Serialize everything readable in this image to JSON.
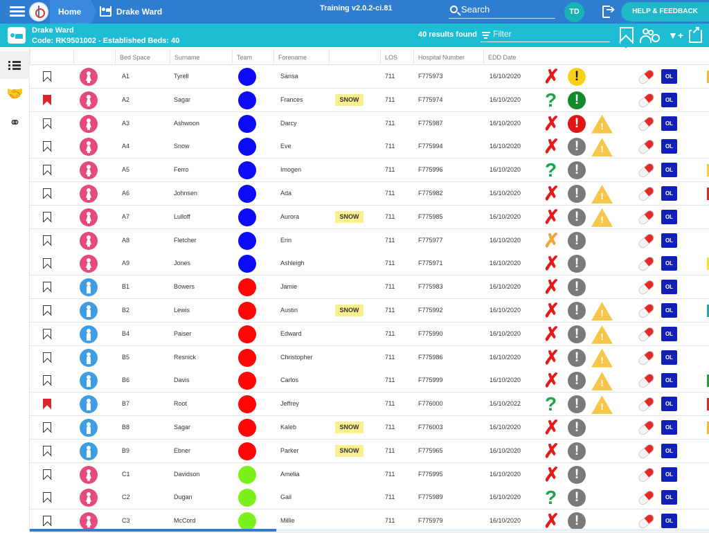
{
  "topbar": {
    "home_label": "Home",
    "ward_label": "Drake Ward",
    "version": "Training v2.0.2-ci.81",
    "search_placeholder": "Search",
    "user_initials": "TD",
    "help_label": "HELP & FEEDBACK",
    "colors": {
      "bar": "#2e7dd1",
      "help": "#1eb8c6",
      "avatar": "#18b3b6"
    }
  },
  "ward": {
    "name": "Drake Ward",
    "code_line": "Code: RK9501002 - Established Beds: 40",
    "results": "40 results found",
    "filter_placeholder": "Filter",
    "color": "#1ebdd3"
  },
  "sidenav": {
    "items": [
      {
        "icon": "list-icon",
        "active": true
      },
      {
        "icon": "handshake-icon",
        "active": false
      },
      {
        "icon": "stethoscope-icon",
        "active": false
      }
    ]
  },
  "columns": [
    "Bed Space",
    "Surname",
    "Team",
    "Forename",
    "LOS",
    "Hospital Number",
    "EDD Date"
  ],
  "icon_colors": {
    "female": "#e5497d",
    "male": "#3f9ee3",
    "team_blue": "#0b0bf5",
    "team_red": "#ff0606",
    "team_green": "#7bf01c",
    "cross_red": "#e31b1b",
    "cross_orange": "#f2a33a",
    "question_green": "#1aa54c",
    "alert_yellow": "#f8d21a",
    "alert_green": "#138a2c",
    "alert_red": "#e11515",
    "alert_grey": "#7a7a7a",
    "warning": "#f5c64a",
    "ol_blue": "#1020b8"
  },
  "ol_label": "OL",
  "rows": [
    {
      "bookmarked": false,
      "gender": "female",
      "bed": "A1",
      "surname": "Tyrell",
      "team": "blue",
      "forename": "Sansa",
      "tag": "",
      "los": "711",
      "hosp": "F775973",
      "edd": "16/10/2020",
      "status": "cross_red",
      "alert": "yellow",
      "warning": false,
      "edge": "#f5b82a"
    },
    {
      "bookmarked": true,
      "gender": "female",
      "bed": "A2",
      "surname": "Sagar",
      "team": "blue",
      "forename": "Frances",
      "tag": "SNOW",
      "los": "711",
      "hosp": "F775974",
      "edd": "16/10/2020",
      "status": "question",
      "alert": "green",
      "warning": false,
      "edge": ""
    },
    {
      "bookmarked": false,
      "gender": "female",
      "bed": "A3",
      "surname": "Ashwoon",
      "team": "blue",
      "forename": "Darcy",
      "tag": "",
      "los": "711",
      "hosp": "F775987",
      "edd": "16/10/2020",
      "status": "cross_red",
      "alert": "red",
      "warning": true,
      "edge": ""
    },
    {
      "bookmarked": false,
      "gender": "female",
      "bed": "A4",
      "surname": "Snow",
      "team": "blue",
      "forename": "Eve",
      "tag": "",
      "los": "711",
      "hosp": "F775994",
      "edd": "16/10/2020",
      "status": "cross_red",
      "alert": "grey",
      "warning": true,
      "edge": ""
    },
    {
      "bookmarked": false,
      "gender": "female",
      "bed": "A5",
      "surname": "Ferro",
      "team": "blue",
      "forename": "Imogen",
      "tag": "",
      "los": "711",
      "hosp": "F775996",
      "edd": "16/10/2020",
      "status": "question",
      "alert": "grey",
      "warning": false,
      "edge": "#f5d02a"
    },
    {
      "bookmarked": false,
      "gender": "female",
      "bed": "A6",
      "surname": "Johnsen",
      "team": "blue",
      "forename": "Ada",
      "tag": "",
      "los": "711",
      "hosp": "F775982",
      "edd": "16/10/2020",
      "status": "cross_red",
      "alert": "grey",
      "warning": true,
      "edge": "#d8262b"
    },
    {
      "bookmarked": false,
      "gender": "female",
      "bed": "A7",
      "surname": "Lulloff",
      "team": "blue",
      "forename": "Aurora",
      "tag": "SNOW",
      "los": "711",
      "hosp": "F775985",
      "edd": "16/10/2020",
      "status": "cross_red",
      "alert": "grey",
      "warning": true,
      "edge": ""
    },
    {
      "bookmarked": false,
      "gender": "female",
      "bed": "A8",
      "surname": "Fletcher",
      "team": "blue",
      "forename": "Erin",
      "tag": "",
      "los": "711",
      "hosp": "F775977",
      "edd": "16/10/2020",
      "status": "cross_orange",
      "alert": "grey",
      "warning": false,
      "edge": ""
    },
    {
      "bookmarked": false,
      "gender": "female",
      "bed": "A9",
      "surname": "Jones",
      "team": "blue",
      "forename": "Ashleigh",
      "tag": "",
      "los": "711",
      "hosp": "F775971",
      "edd": "16/10/2020",
      "status": "cross_red",
      "alert": "grey",
      "warning": false,
      "edge": "#f5e02a"
    },
    {
      "bookmarked": false,
      "gender": "male",
      "bed": "B1",
      "surname": "Bowers",
      "team": "red",
      "forename": "Jamie",
      "tag": "",
      "los": "711",
      "hosp": "F775983",
      "edd": "16/10/2020",
      "status": "cross_red",
      "alert": "grey",
      "warning": false,
      "edge": ""
    },
    {
      "bookmarked": false,
      "gender": "male",
      "bed": "B2",
      "surname": "Lewis",
      "team": "red",
      "forename": "Austin",
      "tag": "SNOW",
      "los": "711",
      "hosp": "F775992",
      "edd": "16/10/2020",
      "status": "cross_red",
      "alert": "grey",
      "warning": true,
      "edge": "#2aa5a0"
    },
    {
      "bookmarked": false,
      "gender": "male",
      "bed": "B4",
      "surname": "Paiser",
      "team": "red",
      "forename": "Edward",
      "tag": "",
      "los": "711",
      "hosp": "F775990",
      "edd": "16/10/2020",
      "status": "cross_red",
      "alert": "grey",
      "warning": true,
      "edge": ""
    },
    {
      "bookmarked": false,
      "gender": "male",
      "bed": "B5",
      "surname": "Resnick",
      "team": "red",
      "forename": "Christopher",
      "tag": "",
      "los": "711",
      "hosp": "F775986",
      "edd": "16/10/2020",
      "status": "cross_red",
      "alert": "grey",
      "warning": true,
      "edge": ""
    },
    {
      "bookmarked": false,
      "gender": "male",
      "bed": "B6",
      "surname": "Davis",
      "team": "red",
      "forename": "Carlos",
      "tag": "",
      "los": "711",
      "hosp": "F775999",
      "edd": "16/10/2020",
      "status": "cross_red",
      "alert": "grey",
      "warning": true,
      "edge": "#2a9a3a"
    },
    {
      "bookmarked": true,
      "gender": "male",
      "bed": "B7",
      "surname": "Root",
      "team": "red",
      "forename": "Jeffrey",
      "tag": "",
      "los": "711",
      "hosp": "F776000",
      "edd": "16/10/2022",
      "status": "question",
      "alert": "grey",
      "warning": true,
      "edge": "#d8262b"
    },
    {
      "bookmarked": false,
      "gender": "male",
      "bed": "B8",
      "surname": "Sagar",
      "team": "red",
      "forename": "Kaleb",
      "tag": "SNOW",
      "los": "711",
      "hosp": "F776003",
      "edd": "16/10/2020",
      "status": "cross_red",
      "alert": "grey",
      "warning": false,
      "edge": "#f5b82a"
    },
    {
      "bookmarked": false,
      "gender": "male",
      "bed": "B9",
      "surname": "Ebner",
      "team": "red",
      "forename": "Parker",
      "tag": "SNOW",
      "los": "711",
      "hosp": "F775965",
      "edd": "16/10/2020",
      "status": "cross_red",
      "alert": "grey",
      "warning": false,
      "edge": ""
    },
    {
      "bookmarked": false,
      "gender": "female",
      "bed": "C1",
      "surname": "Davidson",
      "team": "green",
      "forename": "Amelia",
      "tag": "",
      "los": "711",
      "hosp": "F775995",
      "edd": "16/10/2020",
      "status": "cross_red",
      "alert": "grey",
      "warning": false,
      "edge": ""
    },
    {
      "bookmarked": false,
      "gender": "female",
      "bed": "C2",
      "surname": "Dugan",
      "team": "green",
      "forename": "Gail",
      "tag": "",
      "los": "711",
      "hosp": "F775989",
      "edd": "16/10/2020",
      "status": "question",
      "alert": "grey",
      "warning": false,
      "edge": ""
    },
    {
      "bookmarked": false,
      "gender": "female",
      "bed": "C3",
      "surname": "McCord",
      "team": "green",
      "forename": "Millie",
      "tag": "",
      "los": "711",
      "hosp": "F775979",
      "edd": "16/10/2020",
      "status": "cross_red",
      "alert": "grey",
      "warning": false,
      "edge": ""
    }
  ]
}
